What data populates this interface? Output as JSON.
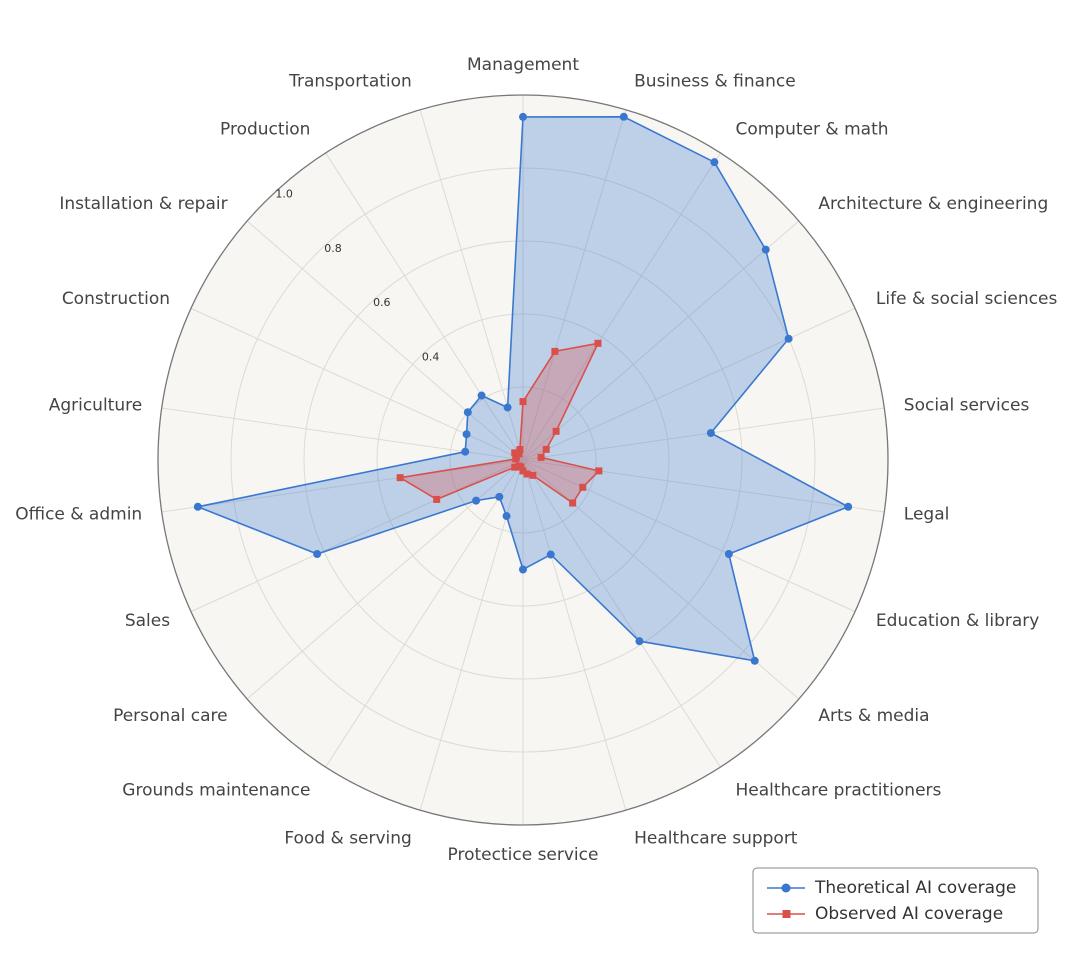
{
  "chart_data": {
    "type": "radar",
    "categories": [
      "Management",
      "Business & finance",
      "Computer & math",
      "Architecture & engineering",
      "Life & social sciences",
      "Social services",
      "Legal",
      "Education & library",
      "Arts & media",
      "Healthcare practitioners",
      "Healthcare support",
      "Protectice service",
      "Food & serving",
      "Grounds maintenance",
      "Personal care",
      "Sales",
      "Office & admin",
      "Agriculture",
      "Construction",
      "Installation & repair",
      "Production",
      "Transportation"
    ],
    "series": [
      {
        "name": "Theoretical AI coverage",
        "color": "#3a78d0",
        "marker": "circle",
        "values": [
          0.94,
          0.98,
          0.97,
          0.88,
          0.8,
          0.52,
          0.9,
          0.62,
          0.84,
          0.59,
          0.27,
          0.3,
          0.16,
          0.12,
          0.17,
          0.62,
          0.9,
          0.16,
          0.17,
          0.2,
          0.21,
          0.15
        ]
      },
      {
        "name": "Observed AI coverage",
        "color": "#d9504b",
        "marker": "square",
        "values": [
          0.16,
          0.31,
          0.38,
          0.12,
          0.07,
          0.05,
          0.21,
          0.18,
          0.18,
          0.05,
          0.04,
          0.03,
          0.02,
          0.02,
          0.03,
          0.26,
          0.34,
          0.02,
          0.02,
          0.03,
          0.02,
          0.03
        ]
      }
    ],
    "rlim": [
      0,
      1
    ],
    "rticks": [
      {
        "value": 0.2,
        "label": null
      },
      0.4,
      0.6,
      0.8,
      {
        "value": 1,
        "label": "1.0"
      }
    ],
    "grid": true,
    "legend": "lower right"
  }
}
